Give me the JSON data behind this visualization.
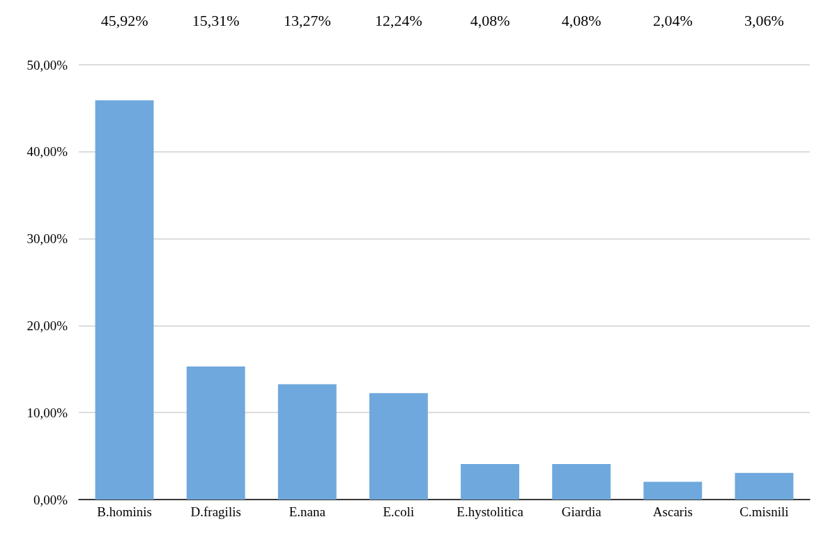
{
  "chart_data": {
    "type": "bar",
    "categories": [
      "B.hominis",
      "D.fragilis",
      "E.nana",
      "E.coli",
      "E.hystolitica",
      "Giardia",
      "Ascaris",
      "C.misnili"
    ],
    "values": [
      45.92,
      15.31,
      13.27,
      12.24,
      4.08,
      4.08,
      2.04,
      3.06
    ],
    "value_labels": [
      "45,92%",
      "15,31%",
      "13,27%",
      "12,24%",
      "4,08%",
      "4,08%",
      "2,04%",
      "3,06%"
    ],
    "color": "#6fa8dc",
    "ylim": [
      0,
      50
    ],
    "yticks": [
      {
        "value": 0,
        "label": "0,00%"
      },
      {
        "value": 10,
        "label": "10,00%"
      },
      {
        "value": 20,
        "label": "20,00%"
      },
      {
        "value": 30,
        "label": "30,00%"
      },
      {
        "value": 40,
        "label": "40,00%"
      },
      {
        "value": 50,
        "label": "50,00%"
      }
    ],
    "grid": "y"
  }
}
